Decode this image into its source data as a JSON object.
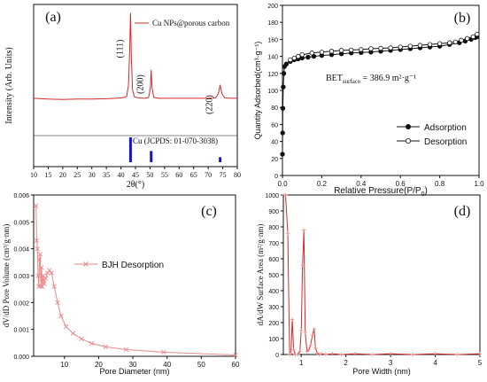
{
  "colors": {
    "red": "#d62828",
    "pink": "#e98a8a",
    "blue": "#1414cc",
    "black": "#111111"
  },
  "chart_data": [
    {
      "id": "a",
      "type": "line",
      "panel_label": "(a)",
      "xlabel": "2θ(°)",
      "ylabel": "Intensity (Arb. Units)",
      "xlim": [
        10,
        80
      ],
      "ylim": [
        0,
        100
      ],
      "xticks": [
        "10",
        "15",
        "20",
        "25",
        "30",
        "35",
        "40",
        "45",
        "50",
        "55",
        "60",
        "65",
        "70",
        "75",
        "80"
      ],
      "legend": "Cu NPs@porous carbon",
      "reference_label": "Cu (JCPDS: 01-070-3038)",
      "peak_labels": [
        {
          "text": "(111)",
          "x": 43.3
        },
        {
          "text": "(200)",
          "x": 50.4
        },
        {
          "text": "(220)",
          "x": 74.1
        }
      ],
      "series": [
        {
          "name": "Cu NPs@porous carbon",
          "x": [
            10,
            15,
            20,
            25,
            30,
            35,
            38,
            40,
            41,
            42,
            42.6,
            43.0,
            43.3,
            43.6,
            44.0,
            44.6,
            46,
            48,
            49.5,
            50.1,
            50.4,
            50.7,
            51.3,
            53,
            56,
            60,
            63,
            66,
            70,
            72.5,
            73.5,
            74.1,
            74.7,
            75.7,
            78,
            80
          ],
          "y": [
            41,
            40,
            39.5,
            40,
            40,
            40.5,
            41,
            41.5,
            42,
            43.5,
            58,
            100,
            150,
            90,
            52,
            43,
            41.5,
            41,
            42,
            54,
            77,
            55,
            42,
            41,
            41,
            41,
            41,
            41,
            41,
            41.5,
            47,
            58,
            47,
            41.5,
            41,
            41
          ]
        }
      ],
      "reference_peaks": [
        {
          "x": 43.3,
          "h": 20
        },
        {
          "x": 50.4,
          "h": 9
        },
        {
          "x": 74.1,
          "h": 4
        }
      ]
    },
    {
      "id": "b",
      "type": "line",
      "panel_label": "(b)",
      "xlabel": "Relative Pressure(P/P",
      "xlabel_sub": "0",
      "ylabel": "Quantity Adsorbed(cm³·g⁻¹)",
      "annotation": "BET",
      "annotation_sub": "surface",
      "annotation_tail": " = 386.9 m²·g⁻¹",
      "xlim": [
        0,
        1
      ],
      "ylim": [
        0,
        200
      ],
      "xticks": [
        "0.0",
        "0.2",
        "0.4",
        "0.6",
        "0.8",
        "1.0"
      ],
      "yticks": [
        "0",
        "20",
        "40",
        "60",
        "80",
        "100",
        "120",
        "140",
        "160",
        "180",
        "200"
      ],
      "series": [
        {
          "name": "Adsorption",
          "marker": "filled",
          "x": [
            0.0,
            0.001,
            0.002,
            0.004,
            0.007,
            0.01,
            0.02,
            0.04,
            0.06,
            0.08,
            0.1,
            0.13,
            0.16,
            0.2,
            0.25,
            0.3,
            0.35,
            0.4,
            0.45,
            0.5,
            0.55,
            0.6,
            0.65,
            0.7,
            0.75,
            0.8,
            0.85,
            0.9,
            0.93,
            0.96,
            0.98,
            0.99
          ],
          "y": [
            25,
            50,
            79,
            104,
            120,
            128,
            131,
            134,
            136,
            137,
            138,
            139,
            140,
            141,
            142,
            143,
            144,
            144.5,
            145,
            146,
            147,
            148,
            149,
            150,
            151,
            152,
            154,
            156,
            158,
            160,
            162,
            163
          ]
        },
        {
          "name": "Desorption",
          "marker": "open",
          "x": [
            0.99,
            0.97,
            0.94,
            0.91,
            0.88,
            0.85,
            0.8,
            0.75,
            0.7,
            0.65,
            0.6,
            0.55,
            0.5,
            0.45,
            0.4,
            0.35,
            0.3,
            0.25,
            0.2,
            0.15,
            0.1,
            0.08,
            0.06,
            0.04
          ],
          "y": [
            166,
            163,
            161,
            159,
            157,
            156,
            155,
            154,
            153,
            152,
            151,
            150,
            149.5,
            149,
            148,
            147.5,
            147,
            146,
            145,
            144,
            142,
            140,
            138,
            136
          ]
        }
      ]
    },
    {
      "id": "c",
      "type": "line",
      "panel_label": "(c)",
      "xlabel": "Pore Diameter (nm)",
      "ylabel": "dV/dD Pore Volume (cm³/g·nm)",
      "legend": "BJH Desorption",
      "xlim": [
        1,
        60
      ],
      "ylim": [
        0,
        0.006
      ],
      "xticks": [
        "10",
        "20",
        "30",
        "40",
        "50",
        "60"
      ],
      "yticks": [
        "0.000",
        "0.001",
        "0.002",
        "0.003",
        "0.004",
        "0.005",
        "0.006"
      ],
      "series": [
        {
          "name": "BJH Desorption",
          "x": [
            1.7,
            1.9,
            2.1,
            2.3,
            2.5,
            2.7,
            2.9,
            3.1,
            3.3,
            3.5,
            3.8,
            4.1,
            4.5,
            5.0,
            5.6,
            6.2,
            7.0,
            8.0,
            9.0,
            10.5,
            12.5,
            15,
            18,
            22,
            28,
            39,
            60
          ],
          "y": [
            0.0056,
            0.0043,
            0.004,
            0.003,
            0.0026,
            0.0036,
            0.0038,
            0.0026,
            0.0033,
            0.0026,
            0.003,
            0.0027,
            0.0029,
            0.0031,
            0.0032,
            0.0031,
            0.0026,
            0.002,
            0.0015,
            0.0011,
            0.00085,
            0.00065,
            0.00048,
            0.00035,
            0.00025,
            0.00015,
            5e-05
          ]
        }
      ]
    },
    {
      "id": "d",
      "type": "line",
      "panel_label": "(d)",
      "xlabel": "Pore Width (nm)",
      "ylabel": "dA/dW Surface Area (m²/g·nm)",
      "xlim": [
        0.6,
        5
      ],
      "ylim": [
        0,
        1000
      ],
      "xticks": [
        "1",
        "2",
        "3",
        "4",
        "5"
      ],
      "yticks": [
        "0",
        "100",
        "200",
        "300",
        "400",
        "500",
        "600",
        "700",
        "800",
        "900",
        "1000"
      ],
      "series": [
        {
          "name": "dA/dW",
          "x": [
            0.62,
            0.65,
            0.7,
            0.74,
            0.77,
            0.8,
            0.83,
            0.87,
            0.92,
            0.97,
            1.0,
            1.03,
            1.06,
            1.09,
            1.13,
            1.17,
            1.21,
            1.25,
            1.29,
            1.32,
            1.36,
            1.4,
            1.45,
            1.55,
            1.7,
            1.9,
            2.2,
            2.6,
            3.0,
            3.5,
            4.0,
            4.5,
            5.0
          ],
          "y": [
            1000,
            1000,
            760,
            0,
            5,
            220,
            30,
            0,
            0,
            20,
            150,
            560,
            780,
            140,
            20,
            30,
            60,
            120,
            160,
            40,
            10,
            0,
            5,
            0,
            5,
            0,
            5,
            0,
            5,
            0,
            5,
            0,
            5
          ]
        }
      ]
    }
  ]
}
